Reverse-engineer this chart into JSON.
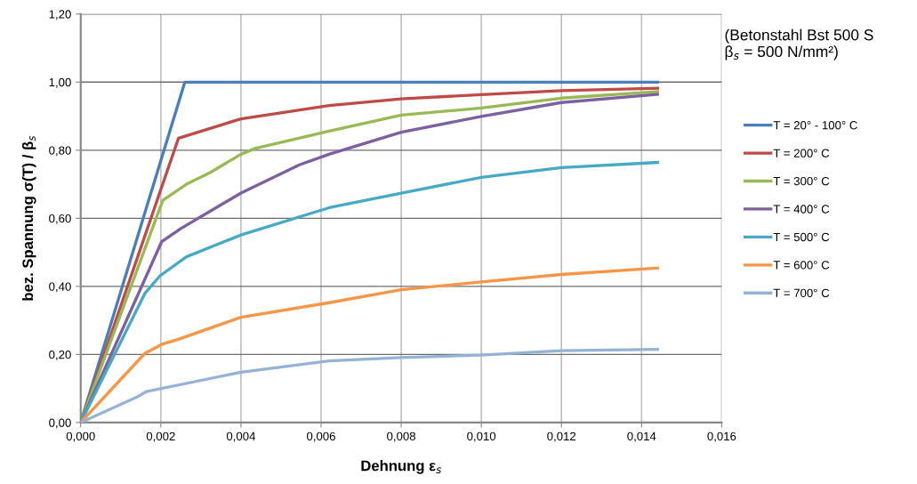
{
  "chart_data": {
    "type": "line",
    "xlabel": "Dehnung ε$_{s}$",
    "ylabel": "bez. Spannung σ(T) / β$_{s}$",
    "annotations": [
      "(Betonstahl Bst 500 S\nβ$_{s}$ = 500 N/mm²)"
    ],
    "xlim": [
      0,
      0.016
    ],
    "xticks": [
      {
        "value": 0,
        "label": "0,000"
      },
      {
        "value": 0.002,
        "label": "0,002"
      },
      {
        "value": 0.004,
        "label": "0,004"
      },
      {
        "value": 0.006,
        "label": "0,006"
      },
      {
        "value": 0.008,
        "label": "0,008"
      },
      {
        "value": 0.01,
        "label": "0,010"
      },
      {
        "value": 0.012,
        "label": "0,012"
      },
      {
        "value": 0.014,
        "label": "0,014"
      },
      {
        "value": 0.016,
        "label": "0,016"
      }
    ],
    "ylim": [
      0,
      1.2
    ],
    "yticks": [
      {
        "value": 0,
        "label": "0,00"
      },
      {
        "value": 0.2,
        "label": "0,20"
      },
      {
        "value": 0.4,
        "label": "0,40"
      },
      {
        "value": 0.6,
        "label": "0,60"
      },
      {
        "value": 0.8,
        "label": "0,80"
      },
      {
        "value": 1.0,
        "label": "1,00"
      },
      {
        "value": 1.2,
        "label": "1,20"
      }
    ],
    "grid": true,
    "legend": "right",
    "marker": "none",
    "line_style": "solid",
    "series": [
      {
        "name": "T = 20° - 100° C",
        "color": "#4a7ebb",
        "x": [
          0,
          0.0026,
          0.0144
        ],
        "values": [
          0,
          1.0,
          1.0
        ]
      },
      {
        "name": "T = 200° C",
        "color": "#be4b48",
        "x": [
          0,
          0.00244,
          0.004,
          0.0062,
          0.008,
          0.01,
          0.012,
          0.0144
        ],
        "values": [
          0,
          0.835,
          0.892,
          0.931,
          0.951,
          0.963,
          0.975,
          0.982
        ]
      },
      {
        "name": "T = 300° C",
        "color": "#98b954",
        "x": [
          0,
          0.00205,
          0.00264,
          0.00324,
          0.004,
          0.00435,
          0.0062,
          0.008,
          0.01,
          0.012,
          0.0144
        ],
        "values": [
          0,
          0.653,
          0.7,
          0.735,
          0.788,
          0.805,
          0.856,
          0.903,
          0.924,
          0.953,
          0.972
        ]
      },
      {
        "name": "T = 400° C",
        "color": "#7d60a0",
        "x": [
          0,
          0.00202,
          0.0025,
          0.004,
          0.00546,
          0.0062,
          0.008,
          0.01,
          0.012,
          0.0144
        ],
        "values": [
          0,
          0.531,
          0.57,
          0.674,
          0.757,
          0.788,
          0.853,
          0.899,
          0.94,
          0.964
        ]
      },
      {
        "name": "T = 500° C",
        "color": "#46aac5",
        "x": [
          0,
          0.0016,
          0.00198,
          0.00264,
          0.004,
          0.0062,
          0.008,
          0.01,
          0.012,
          0.0144
        ],
        "values": [
          0,
          0.379,
          0.431,
          0.487,
          0.551,
          0.631,
          0.674,
          0.72,
          0.749,
          0.764
        ]
      },
      {
        "name": "T = 600° C",
        "color": "#f79646",
        "x": [
          0,
          0.0016,
          0.00205,
          0.00242,
          0.004,
          0.0062,
          0.008,
          0.01,
          0.012,
          0.0144
        ],
        "values": [
          0,
          0.203,
          0.231,
          0.244,
          0.309,
          0.352,
          0.39,
          0.413,
          0.435,
          0.454
        ]
      },
      {
        "name": "T = 700° C",
        "color": "#95b3d7",
        "x": [
          0,
          0.00139,
          0.00164,
          0.004,
          0.0062,
          0.008,
          0.01,
          0.012,
          0.0144
        ],
        "values": [
          0,
          0.074,
          0.091,
          0.148,
          0.181,
          0.191,
          0.198,
          0.211,
          0.215
        ]
      }
    ]
  }
}
